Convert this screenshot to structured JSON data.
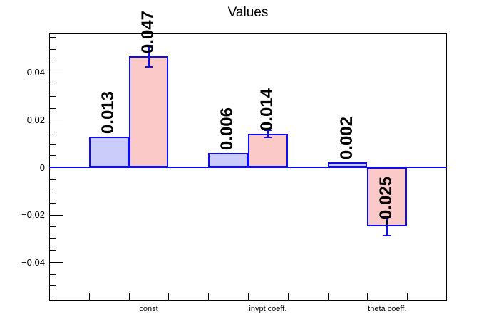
{
  "title": "Values",
  "colors": {
    "background": "#ffffff",
    "frame": "#000000",
    "axis_text": "#000000",
    "bar_border": "#0d0df0",
    "zero_line": "#0d0df0",
    "error_bar": "#0d0df0",
    "blue_fill": "#ccccfa",
    "pink_fill": "#fcc9c9"
  },
  "chart_data": {
    "type": "bar",
    "title": "Values",
    "categories": [
      "const",
      "invpt coeff.",
      "theta coeff."
    ],
    "category_bins": [
      2,
      5,
      8
    ],
    "n_bins": 10,
    "ylim": [
      -0.0565,
      0.0565
    ],
    "y_minor_step": 0.005,
    "grid": false,
    "legend": null,
    "series": [
      {
        "name": "light-blue-series",
        "fill_key": "blue_fill",
        "bins": [
          1,
          4,
          7
        ],
        "values": [
          0.013,
          0.006,
          0.002
        ],
        "labels": [
          "0.013",
          "0.006",
          "0.002"
        ],
        "errors": [
          0,
          0,
          0
        ]
      },
      {
        "name": "light-pink-series",
        "fill_key": "pink_fill",
        "bins": [
          2,
          5,
          8
        ],
        "values": [
          0.047,
          0.014,
          -0.025
        ],
        "labels": [
          "0.047",
          "0.014",
          "-0.025"
        ],
        "errors": [
          0.0045,
          0.0015,
          0.004
        ]
      }
    ],
    "yticks": [
      {
        "value": 0.04,
        "label": "0.04"
      },
      {
        "value": 0.02,
        "label": "0.02"
      },
      {
        "value": 0,
        "label": "0"
      },
      {
        "value": -0.02,
        "label": "−0.02"
      },
      {
        "value": -0.04,
        "label": "−0.04"
      }
    ]
  }
}
